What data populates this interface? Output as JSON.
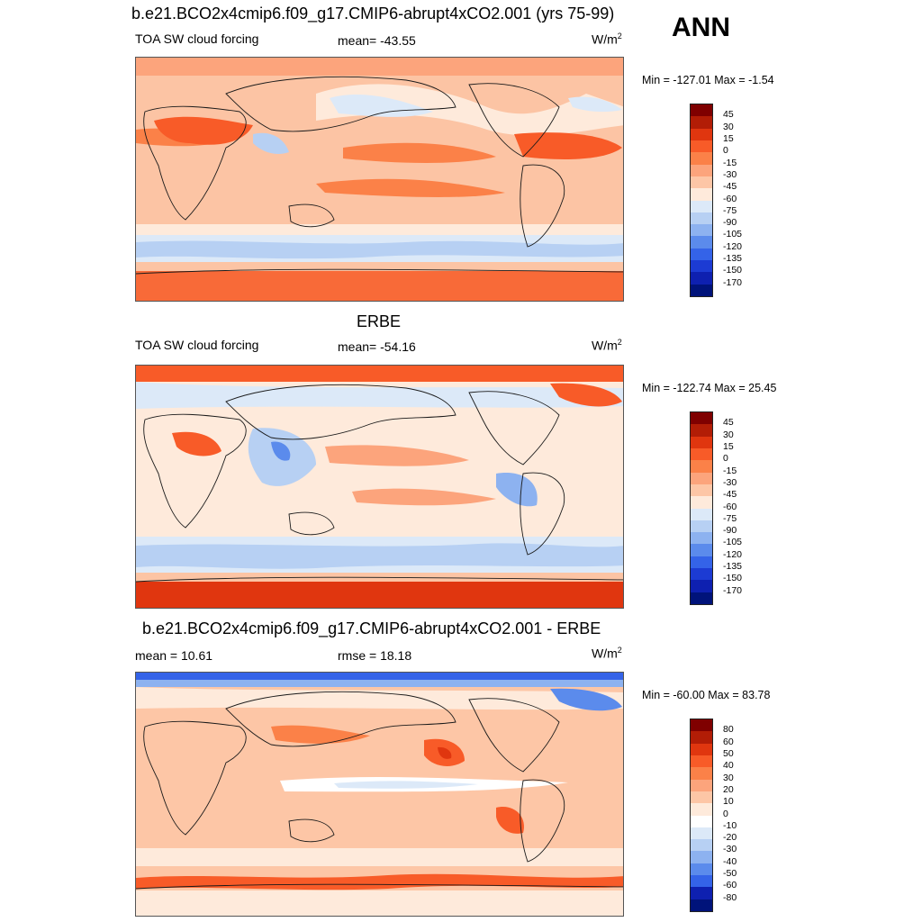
{
  "season": "ANN",
  "colors": {
    "ocean_bg_model": "#fcc4a4",
    "land_line": "#1a1a1a"
  },
  "panels": [
    {
      "id": "model",
      "title": "b.e21.BCO2x4cmip6.f09_g17.CMIP6-abrupt4xCO2.001 (yrs 75-99)",
      "left_label": "TOA SW cloud forcing",
      "center_label": "mean= -43.55",
      "units": "W/m",
      "units_sup": "2",
      "minmax": "Min = -127.01 Max =  -1.54",
      "colorbar": {
        "labels": [
          "45",
          "30",
          "15",
          "0",
          "-15",
          "-30",
          "-45",
          "-60",
          "-75",
          "-90",
          "-105",
          "-120",
          "-135",
          "-150",
          "-170"
        ],
        "colors": [
          "#7f0000",
          "#b21d06",
          "#e0360f",
          "#f85b28",
          "#fb8148",
          "#fca47c",
          "#fdc6a6",
          "#feeadb",
          "#dce9f8",
          "#b7d0f3",
          "#8db2f0",
          "#5b8bec",
          "#3463e8",
          "#1c3bd3",
          "#0e20b0",
          "#00137a"
        ]
      }
    },
    {
      "id": "obs",
      "title": "ERBE",
      "left_label": "TOA SW cloud forcing",
      "center_label": "mean= -54.16",
      "units": "W/m",
      "units_sup": "2",
      "minmax": "Min = -122.74 Max =  25.45",
      "colorbar": {
        "labels": [
          "45",
          "30",
          "15",
          "0",
          "-15",
          "-30",
          "-45",
          "-60",
          "-75",
          "-90",
          "-105",
          "-120",
          "-135",
          "-150",
          "-170"
        ],
        "colors": [
          "#7f0000",
          "#b21d06",
          "#e0360f",
          "#f85b28",
          "#fb8148",
          "#fca47c",
          "#fdc6a6",
          "#feeadb",
          "#dce9f8",
          "#b7d0f3",
          "#8db2f0",
          "#5b8bec",
          "#3463e8",
          "#1c3bd3",
          "#0e20b0",
          "#00137a"
        ]
      }
    },
    {
      "id": "diff",
      "title": "b.e21.BCO2x4cmip6.f09_g17.CMIP6-abrupt4xCO2.001 - ERBE",
      "left_label": "mean =  10.61",
      "center_label": "rmse =  18.18",
      "units": "W/m",
      "units_sup": "2",
      "minmax": "Min = -60.00 Max =  83.78",
      "colorbar": {
        "labels": [
          "80",
          "60",
          "50",
          "40",
          "30",
          "20",
          "10",
          "0",
          "-10",
          "-20",
          "-30",
          "-40",
          "-50",
          "-60",
          "-80"
        ],
        "colors": [
          "#7f0000",
          "#b21d06",
          "#e0360f",
          "#f85b28",
          "#fb8148",
          "#fca47c",
          "#fdc6a6",
          "#feeadb",
          "#ffffff",
          "#dce9f8",
          "#b7d0f3",
          "#8db2f0",
          "#5b8bec",
          "#3463e8",
          "#0e20b0",
          "#00137a"
        ]
      }
    }
  ]
}
